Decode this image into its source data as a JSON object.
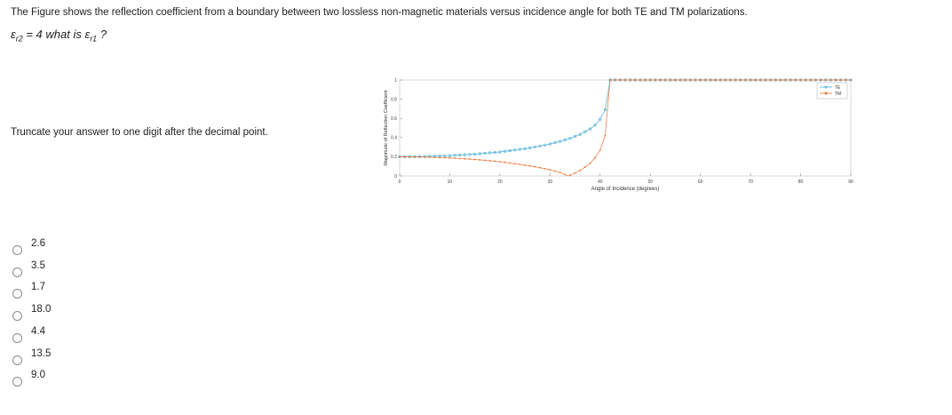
{
  "question": "The Figure shows the reflection coefficient from a boundary between two lossless non-magnetic materials versus incidence angle for both TE and TM polarizations.",
  "equation": {
    "lhs_symbol": "ε",
    "lhs_sub": "r2",
    "equals": " = 4  what is ",
    "rhs_symbol": "ε",
    "rhs_sub": "r1",
    "suffix": " ?"
  },
  "instruction": "Truncate your answer to one digit after the decimal point.",
  "options": [
    "2.6",
    "3.5",
    "1.7",
    "18.0",
    "4.4",
    "13.5",
    "9.0"
  ],
  "colors": {
    "te": "#4fb0d6",
    "tm": "#e8763a"
  },
  "chart_data": {
    "type": "line",
    "xlabel": "Angle of Incidence (degrees)",
    "ylabel": "Magnitude of Reflection Coefficient",
    "xlim": [
      0,
      90
    ],
    "ylim": [
      0,
      1
    ],
    "xticks": [
      "0",
      "10",
      "20",
      "30",
      "40",
      "50",
      "60",
      "70",
      "80",
      "90"
    ],
    "yticks": [
      "0",
      "0.2",
      "0.4",
      "0.6",
      "0.8",
      "1"
    ],
    "legend_position": "top-right",
    "series": [
      {
        "name": "TE",
        "x": [
          0,
          5,
          10,
          15,
          20,
          25,
          28,
          30,
          32,
          34,
          36,
          38,
          39,
          40,
          41,
          42,
          45,
          50,
          60,
          70,
          80,
          90
        ],
        "y": [
          0.2,
          0.203,
          0.212,
          0.227,
          0.25,
          0.284,
          0.312,
          0.333,
          0.36,
          0.392,
          0.433,
          0.49,
          0.53,
          0.59,
          0.69,
          1,
          1,
          1,
          1,
          1,
          1,
          1
        ]
      },
      {
        "name": "TM",
        "x": [
          0,
          5,
          10,
          15,
          20,
          25,
          28,
          30,
          32,
          33.7,
          35,
          36,
          37,
          38,
          39,
          40,
          41,
          42,
          45,
          50,
          60,
          70,
          80,
          90
        ],
        "y": [
          0.2,
          0.197,
          0.188,
          0.172,
          0.149,
          0.113,
          0.086,
          0.064,
          0.036,
          0.0,
          0.03,
          0.058,
          0.092,
          0.133,
          0.19,
          0.27,
          0.42,
          1,
          1,
          1,
          1,
          1,
          1,
          1
        ]
      }
    ]
  }
}
